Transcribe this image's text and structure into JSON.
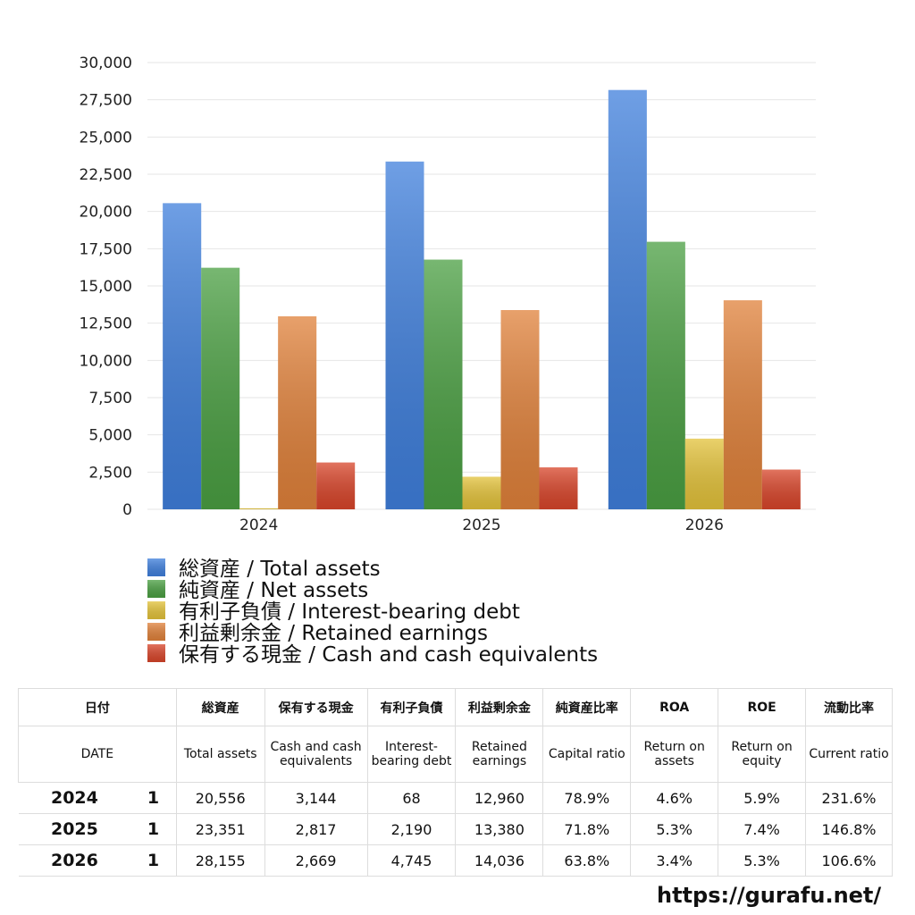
{
  "chart_data": {
    "type": "bar",
    "categories": [
      "2024",
      "2025",
      "2026"
    ],
    "series": [
      {
        "name": "総資産 / Total assets",
        "color": "#3f7fdc",
        "values": [
          20556,
          23351,
          28155
        ]
      },
      {
        "name": "純資産 / Net assets",
        "color": "#4a9f42",
        "values": [
          16219,
          16766,
          17963
        ]
      },
      {
        "name": "有利子負債 / Interest-bearing debt",
        "color": "#e3c23a",
        "values": [
          68,
          2190,
          4745
        ]
      },
      {
        "name": "利益剰余金 / Retained earnings",
        "color": "#e0813a",
        "values": [
          12960,
          13380,
          14036
        ]
      },
      {
        "name": "保有する現金 /  Cash and cash equivalents",
        "color": "#d8452a",
        "values": [
          3144,
          2817,
          2669
        ]
      }
    ],
    "ylim": [
      0,
      30000
    ],
    "yticks": [
      0,
      {
        "value": 2500,
        "label": "2,500"
      },
      {
        "value": 5000,
        "label": "5,000"
      },
      {
        "value": 7500,
        "label": "7,500"
      },
      {
        "value": 10000,
        "label": "10,000"
      },
      {
        "value": 12500,
        "label": "12,500"
      },
      {
        "value": 15000,
        "label": "15,000"
      },
      {
        "value": 17500,
        "label": "17,500"
      },
      {
        "value": 20000,
        "label": "20,000"
      },
      {
        "value": 22500,
        "label": "22,500"
      },
      {
        "value": 25000,
        "label": "25,000"
      },
      {
        "value": 27500,
        "label": "27,500"
      },
      {
        "value": 30000,
        "label": "30,000"
      }
    ],
    "grid": true
  },
  "table": {
    "header_jp": [
      "日付",
      "総資産",
      "保有する現金",
      "有利子負債",
      "利益剰余金",
      "純資産比率",
      "ROA",
      "ROE",
      "流動比率"
    ],
    "header_en": [
      "DATE",
      "Total assets",
      "Cash and cash equivalents",
      "Interest-bearing debt",
      "Retained earnings",
      "Capital ratio",
      "Return on assets",
      "Return on equity",
      "Current ratio"
    ],
    "rows": [
      [
        "2024",
        "1",
        "20,556",
        "3,144",
        "68",
        "12,960",
        "78.9%",
        "4.6%",
        "5.9%",
        "231.6%"
      ],
      [
        "2025",
        "1",
        "23,351",
        "2,817",
        "2,190",
        "13,380",
        "71.8%",
        "5.3%",
        "7.4%",
        "146.8%"
      ],
      [
        "2026",
        "1",
        "28,155",
        "2,669",
        "4,745",
        "14,036",
        "63.8%",
        "3.4%",
        "5.3%",
        "106.6%"
      ]
    ]
  },
  "footer": "https://gurafu.net/"
}
